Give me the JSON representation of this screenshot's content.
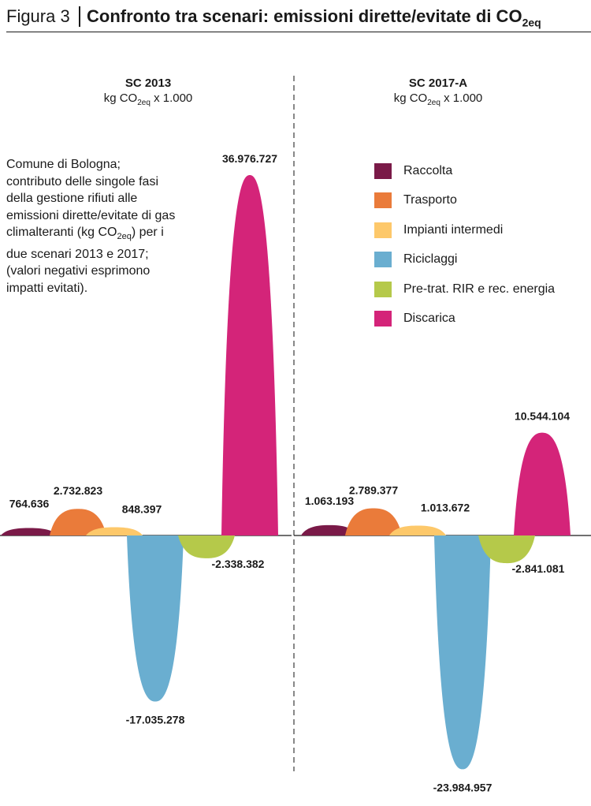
{
  "figure": {
    "label": "Figura 3",
    "title": "Confronto tra scenari: emissioni dirette/evitate di CO",
    "title_sub": "2eq"
  },
  "note": {
    "line1": "Comune di Bologna; contributo delle singole fasi della gestione rifiuti alle emissioni dirette/evitate di gas climalteranti (kg CO",
    "sub": "2eq",
    "line2": ") per i due scenari 2013 e 2017; (valori negativi esprimono impatti evitati)."
  },
  "colors": {
    "Raccolta": "#7a1a48",
    "Trasporto": "#ea7b3a",
    "Impianti intermedi": "#fdc86a",
    "Riciclaggi": "#6aaed0",
    "Pre-trat. RIR e rec. energia": "#b5c94a",
    "Discarica": "#d42479"
  },
  "chart_data": [
    {
      "type": "area",
      "title": "SC 2013",
      "unit_prefix": "kg CO",
      "unit_sub": "2eq",
      "unit_suffix": " x 1.000",
      "categories": [
        "Raccolta",
        "Trasporto",
        "Impianti intermedi",
        "Riciclaggi",
        "Pre-trat. RIR e rec. energia",
        "Discarica"
      ],
      "values": [
        764636,
        2732823,
        848397,
        -17035278,
        -2338382,
        36976727
      ],
      "labels": [
        "764.636",
        "2.732.823",
        "848.397",
        "-17.035.278",
        "-2.338.382",
        "36.976.727"
      ],
      "legend": "none"
    },
    {
      "type": "area",
      "title": "SC 2017-A",
      "unit_prefix": "kg CO",
      "unit_sub": "2eq",
      "unit_suffix": " x 1.000",
      "categories": [
        "Raccolta",
        "Trasporto",
        "Impianti intermedi",
        "Riciclaggi",
        "Pre-trat. RIR e rec. energia",
        "Discarica"
      ],
      "values": [
        1063193,
        2789377,
        1013672,
        -23984957,
        -2841081,
        10544104
      ],
      "labels": [
        "1.063.193",
        "2.789.377",
        "1.013.672",
        "-23.984.957",
        "-2.841.081",
        "10.544.104"
      ],
      "legend": "right"
    }
  ]
}
